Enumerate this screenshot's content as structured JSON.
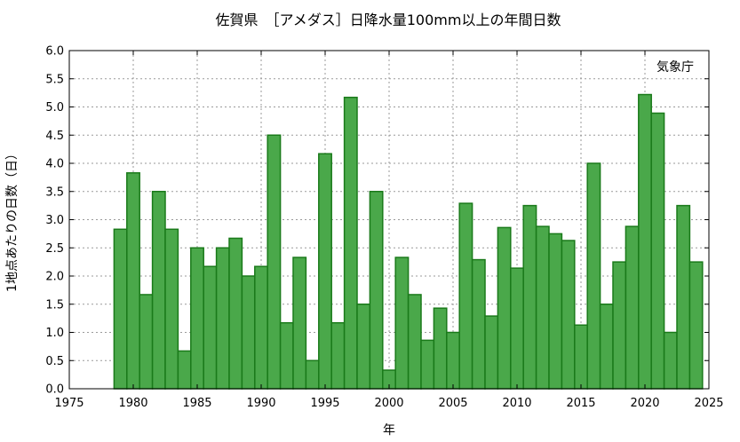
{
  "chart_data": {
    "type": "bar",
    "title": "佐賀県　［アメダス］日降水量100mm以上の年間日数",
    "xlabel": "年",
    "ylabel": "1地点あたりの日数（日）",
    "annotation": "気象庁",
    "xlim": [
      1975,
      2025
    ],
    "ylim": [
      0,
      6
    ],
    "xticks": [
      1975,
      1980,
      1985,
      1990,
      1995,
      2000,
      2005,
      2010,
      2015,
      2020,
      2025
    ],
    "yticks": [
      0.0,
      0.5,
      1.0,
      1.5,
      2.0,
      2.5,
      3.0,
      3.5,
      4.0,
      4.5,
      5.0,
      5.5,
      6.0
    ],
    "grid": true,
    "bar_color": "#4aa84a",
    "bar_edge_color": "#1a7a1a",
    "x": [
      1979,
      1980,
      1981,
      1982,
      1983,
      1984,
      1985,
      1986,
      1987,
      1988,
      1989,
      1990,
      1991,
      1992,
      1993,
      1994,
      1995,
      1996,
      1997,
      1998,
      1999,
      2000,
      2001,
      2002,
      2003,
      2004,
      2005,
      2006,
      2007,
      2008,
      2009,
      2010,
      2011,
      2012,
      2013,
      2014,
      2015,
      2016,
      2017,
      2018,
      2019,
      2020,
      2021,
      2022,
      2023,
      2024
    ],
    "values": [
      2.83,
      3.83,
      1.67,
      3.5,
      2.83,
      0.67,
      2.5,
      2.17,
      2.5,
      2.67,
      2.0,
      2.17,
      4.5,
      1.17,
      2.33,
      0.5,
      4.17,
      1.17,
      5.17,
      1.5,
      3.5,
      0.33,
      2.33,
      1.67,
      0.86,
      1.43,
      1.0,
      3.29,
      2.29,
      1.29,
      2.86,
      2.14,
      3.25,
      2.88,
      2.75,
      2.63,
      1.13,
      4.0,
      1.5,
      2.25,
      2.88,
      5.22,
      4.89,
      1.0,
      3.25,
      2.25
    ]
  }
}
